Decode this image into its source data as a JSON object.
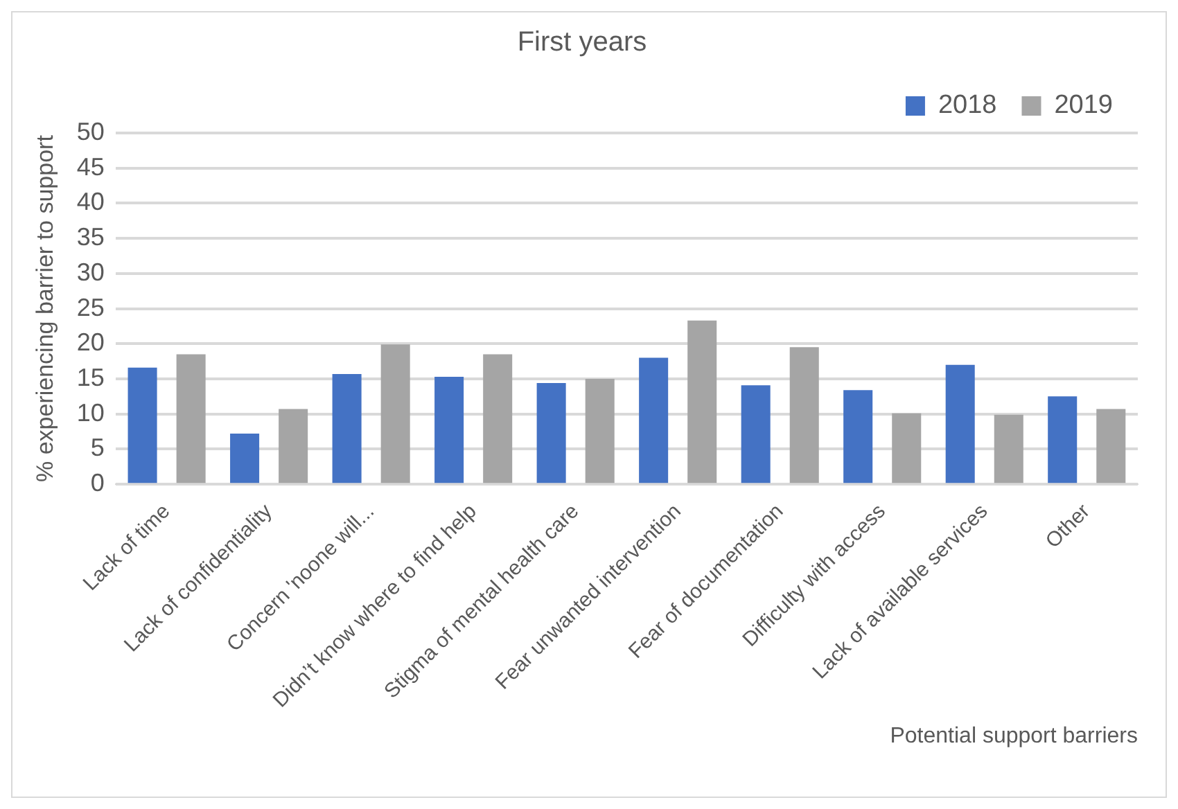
{
  "chart_data": {
    "type": "bar",
    "title": "First years",
    "xlabel": "Potential support barriers",
    "ylabel": "% experiencing barrier to support",
    "categories": [
      "Lack of time",
      "Lack of confidentiality",
      "Concern 'noone will...",
      "Didn’t know where to find help",
      "Stigma of mental health care",
      "Fear unwanted intervention",
      "Fear of documentation",
      "Difficulty with access",
      "Lack of available services",
      "Other"
    ],
    "series": [
      {
        "name": "2018",
        "color": "#4472c4",
        "values": [
          16.6,
          7.2,
          15.7,
          15.3,
          14.4,
          18.0,
          14.1,
          13.4,
          17.0,
          12.5
        ]
      },
      {
        "name": "2019",
        "color": "#a5a5a5",
        "values": [
          18.5,
          10.7,
          19.9,
          18.5,
          15.0,
          23.3,
          19.5,
          10.1,
          9.9,
          10.7
        ]
      }
    ],
    "ylim": [
      0,
      50
    ],
    "yticks": [
      0,
      5,
      10,
      15,
      20,
      25,
      30,
      35,
      40,
      45,
      50
    ],
    "grid": "y",
    "legend": "top right"
  }
}
